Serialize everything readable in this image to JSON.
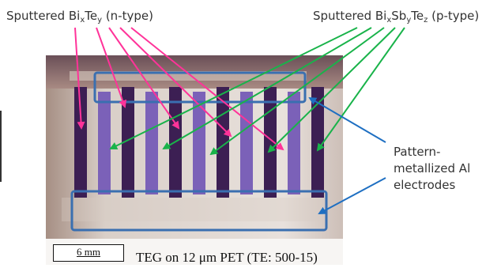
{
  "labels": {
    "n_type": {
      "prefix": "Sputtered Bi",
      "sub1": "x",
      "mid": "Te",
      "sub2": "y",
      "suffix": " (n-type)"
    },
    "p_type": {
      "prefix": "Sputtered Bi",
      "sub1": "x",
      "mid1": "Sb",
      "sub2": "y",
      "mid2": "Te",
      "sub3": "z",
      "suffix": " (p-type)"
    },
    "electrodes": {
      "line1": "Pattern-",
      "line2": "metallized Al",
      "line3": "electrodes"
    }
  },
  "photo": {
    "caption": "TEG on 12 μm PET (TE: 500-15)",
    "scale_bar": "6 mm"
  },
  "colors": {
    "n_arrow": "#ff3399",
    "p_arrow": "#19b34a",
    "electrode_arrow": "#1e6fc2",
    "highlight_box": "#3a6fb0",
    "legs_dark": "#3c1f53",
    "legs_purple": "#7b61b8",
    "film": "#e9e3df"
  }
}
